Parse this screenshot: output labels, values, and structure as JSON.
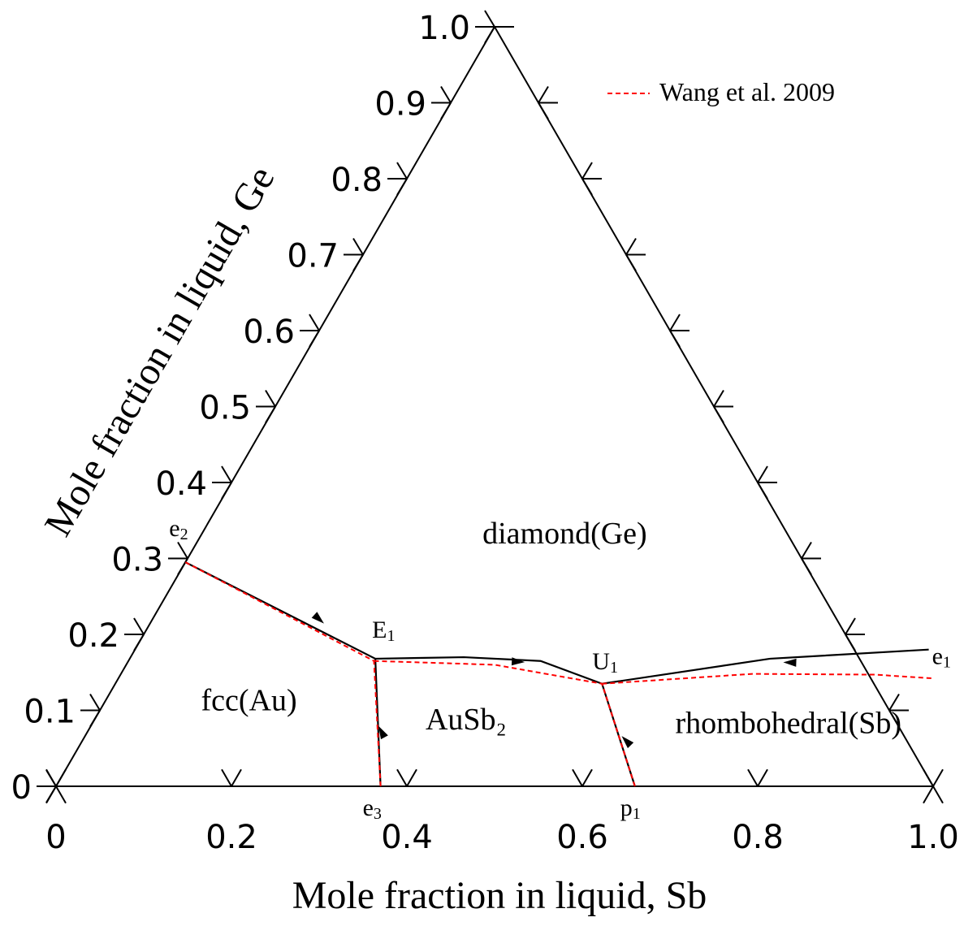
{
  "chart_data": {
    "type": "ternary",
    "title": "",
    "xlabel": "Mole fraction in liquid, Sb",
    "ylabel": "Mole fraction in liquid, Ge",
    "x_ticks": [
      "0",
      "0.2",
      "0.4",
      "0.6",
      "0.8",
      "1.0"
    ],
    "y_ticks": [
      "0",
      "0.1",
      "0.2",
      "0.3",
      "0.4",
      "0.5",
      "0.6",
      "0.7",
      "0.8",
      "0.9",
      "1.0"
    ],
    "legend": {
      "label": "Wang et al.   2009",
      "placement": "top-right",
      "style": "dashed",
      "color": "#ff0000"
    },
    "phases": [
      {
        "name": "diamond(Ge)",
        "sb": 0.42,
        "ge": 0.32
      },
      {
        "name": "fcc(Au)",
        "sb": 0.17,
        "ge": 0.1
      },
      {
        "name": "AuSb₂",
        "sb": 0.43,
        "ge": 0.075
      },
      {
        "name": "rhombohedral(Sb)",
        "sb": 0.8,
        "ge": 0.07
      }
    ],
    "points": [
      {
        "base": "e",
        "sub": "2",
        "sb": 0.0,
        "ge": 0.295
      },
      {
        "base": "E",
        "sub": "1",
        "sb": 0.28,
        "ge": 0.168
      },
      {
        "base": "U",
        "sub": "1",
        "sb": 0.555,
        "ge": 0.135
      },
      {
        "base": "e",
        "sub": "1",
        "sb": 0.905,
        "ge": 0.18
      },
      {
        "base": "e",
        "sub": "3",
        "sb": 0.37,
        "ge": 0.0
      },
      {
        "base": "p",
        "sub": "1",
        "sb": 0.66,
        "ge": 0.0
      }
    ],
    "series": [
      {
        "style": "solid",
        "color": "#000000",
        "lines": [
          [
            [
              0.0,
              0.295
            ],
            [
              0.28,
              0.168
            ]
          ],
          [
            [
              0.37,
              0.0
            ],
            [
              0.28,
              0.168
            ]
          ],
          [
            [
              0.28,
              0.168
            ],
            [
              0.38,
              0.17
            ],
            [
              0.47,
              0.165
            ],
            [
              0.555,
              0.135
            ]
          ],
          [
            [
              0.66,
              0.0
            ],
            [
              0.555,
              0.135
            ]
          ],
          [
            [
              0.905,
              0.18
            ],
            [
              0.73,
              0.168
            ],
            [
              0.555,
              0.135
            ]
          ]
        ]
      },
      {
        "name": "Wang et al.   2009",
        "style": "dashed",
        "color": "#ff0000",
        "lines": [
          [
            [
              0.0,
              0.295
            ],
            [
              0.28,
              0.165
            ]
          ],
          [
            [
              0.37,
              0.0
            ],
            [
              0.28,
              0.165
            ]
          ],
          [
            [
              0.28,
              0.165
            ],
            [
              0.42,
              0.16
            ],
            [
              0.555,
              0.135
            ]
          ],
          [
            [
              0.66,
              0.0
            ],
            [
              0.555,
              0.135
            ]
          ],
          [
            [
              0.555,
              0.135
            ],
            [
              0.72,
              0.148
            ],
            [
              0.86,
              0.147
            ],
            [
              0.93,
              0.142
            ]
          ]
        ]
      }
    ]
  }
}
